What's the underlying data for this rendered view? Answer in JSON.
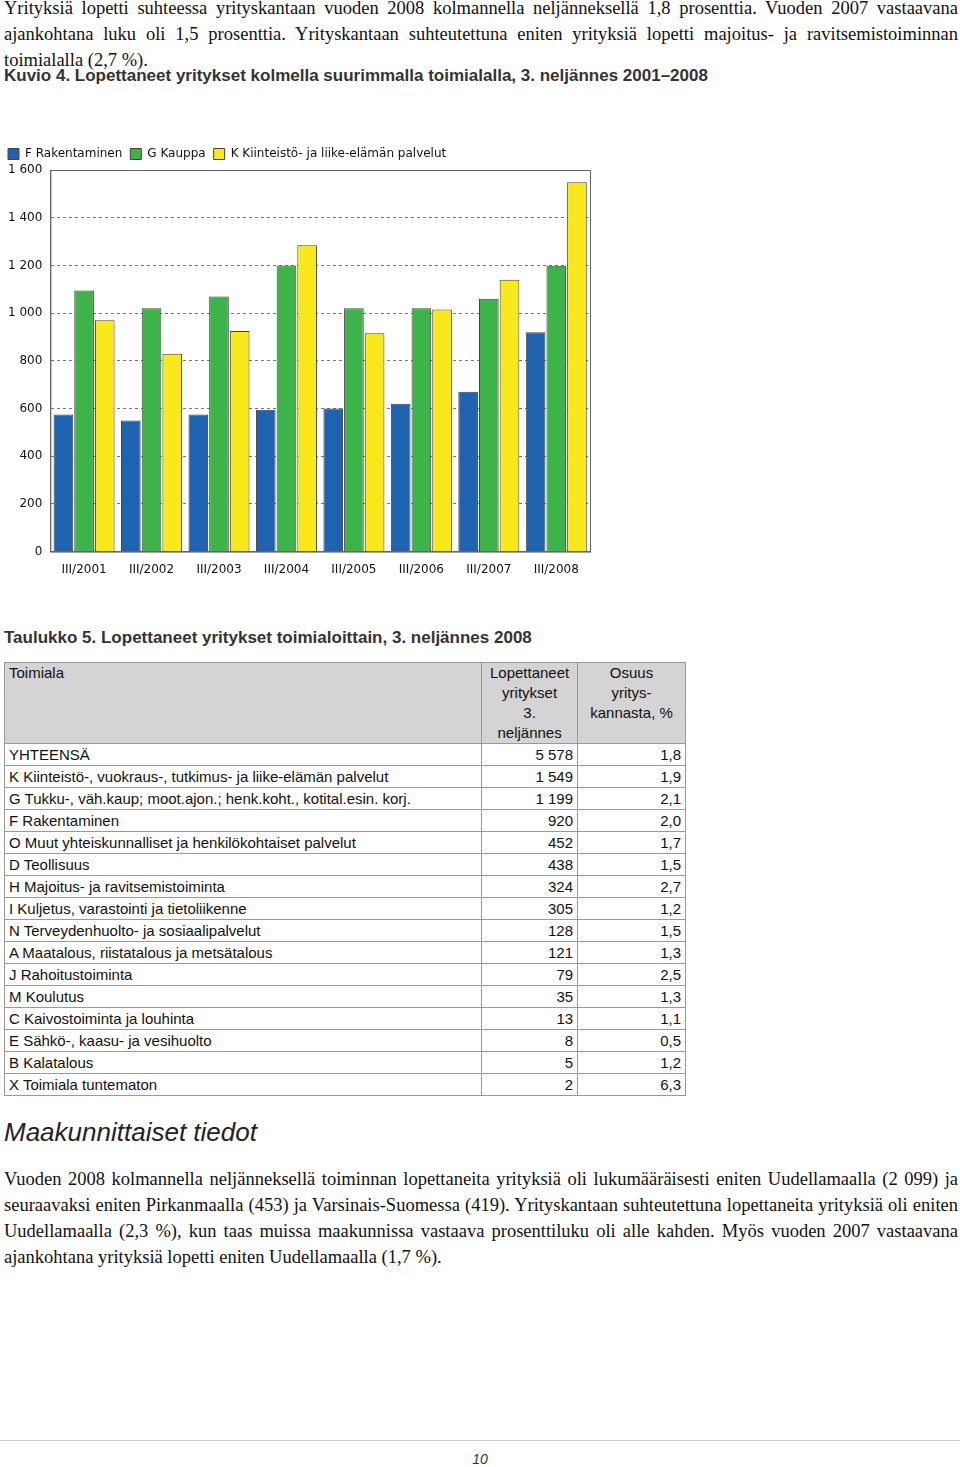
{
  "document": {
    "paragraph_top": "Yrityksiä lopetti suhteessa yrityskantaan vuoden 2008 kolmannella neljänneksellä 1,8 prosenttia. Vuoden 2007 vastaavana ajankohtana luku oli 1,5 prosenttia. Yrityskantaan suhteutettuna eniten yrityksiä lopetti majoitus- ja ravitsemistoiminnan toimialalla (2,7 %).",
    "table": {
      "title": "Taulukko 5. Lopettaneet yritykset toimialoittain, 3. neljännes 2008",
      "header": [
        [
          "Toimiala"
        ],
        [
          "Lopettaneet",
          "yritykset",
          "3.",
          "neljännes"
        ],
        [
          "Osuus",
          "yritys-",
          "kannasta, %"
        ]
      ],
      "rows": [
        [
          "YHTEENSÄ",
          "5 578",
          "1,8"
        ],
        [
          "K Kiinteistö-, vuokraus-, tutkimus- ja liike-elämän palvelut",
          "1 549",
          "1,9"
        ],
        [
          "G Tukku-, väh.kaup; moot.ajon.; henk.koht., kotital.esin. korj.",
          "1 199",
          "2,1"
        ],
        [
          "F Rakentaminen",
          "920",
          "2,0"
        ],
        [
          "O Muut yhteiskunnalliset ja henkilökohtaiset palvelut",
          "452",
          "1,7"
        ],
        [
          "D Teollisuus",
          "438",
          "1,5"
        ],
        [
          "H Majoitus- ja ravitsemistoiminta",
          "324",
          "2,7"
        ],
        [
          "I Kuljetus, varastointi ja tietoliikenne",
          "305",
          "1,2"
        ],
        [
          "N Terveydenhuolto- ja sosiaalipalvelut",
          "128",
          "1,5"
        ],
        [
          "A Maatalous, riistatalous ja metsätalous",
          "121",
          "1,3"
        ],
        [
          "J Rahoitustoiminta",
          "79",
          "2,5"
        ],
        [
          "M Koulutus",
          "35",
          "1,3"
        ],
        [
          "C Kaivostoiminta ja louhinta",
          "13",
          "1,1"
        ],
        [
          "E Sähkö-, kaasu- ja vesihuolto",
          "8",
          "0,5"
        ],
        [
          "B Kalatalous",
          "5",
          "1,2"
        ],
        [
          "X Toimiala tuntematon",
          "2",
          "6,3"
        ]
      ]
    },
    "section_heading": "Maakunnittaiset tiedot",
    "paragraph_bottom": "Vuoden 2008 kolmannella neljänneksellä toiminnan lopettaneita yrityksiä oli lukumääräisesti eniten Uudellamaalla (2 099) ja seuraavaksi eniten Pirkanmaalla (453) ja Varsinais-Suomessa (419). Yrityskantaan suhteutettuna lopettaneita yrityksiä oli eniten Uudellamaalla (2,3 %), kun taas muissa maakunnissa vastaava prosenttiluku oli alle kahden. Myös vuoden 2007 vastaavana ajankohtana yrityksiä lopetti eniten Uudellamaalla (1,7 %).",
    "page_number": "10"
  },
  "chart_data": {
    "type": "bar",
    "title": "Kuvio 4. Lopettaneet yritykset kolmella suurimmalla toimialalla, 3. neljännes 2001–2008",
    "categories": [
      "III/2001",
      "III/2002",
      "III/2003",
      "III/2004",
      "III/2005",
      "III/2006",
      "III/2007",
      "III/2008"
    ],
    "series": [
      {
        "name": "F Rakentaminen",
        "color": "#1f62b0",
        "values": [
          575,
          550,
          575,
          595,
          600,
          620,
          670,
          920
        ]
      },
      {
        "name": "G Kauppa",
        "color": "#3db34a",
        "values": [
          1095,
          1020,
          1070,
          1200,
          1020,
          1020,
          1060,
          1199
        ]
      },
      {
        "name": "K Kiinteistö- ja liike-elämän palvelut",
        "color": "#f9e81c",
        "values": [
          970,
          830,
          925,
          1285,
          915,
          1015,
          1140,
          1549
        ]
      }
    ],
    "ylim": [
      0,
      1600
    ],
    "yticks": [
      0,
      200,
      400,
      600,
      800,
      {
        "value": 1000,
        "label": "1 000"
      },
      {
        "value": 1200,
        "label": "1 200"
      },
      {
        "value": 1400,
        "label": "1 400"
      },
      {
        "value": 1600,
        "label": "1 600"
      }
    ],
    "grid": true,
    "legend": "top"
  }
}
